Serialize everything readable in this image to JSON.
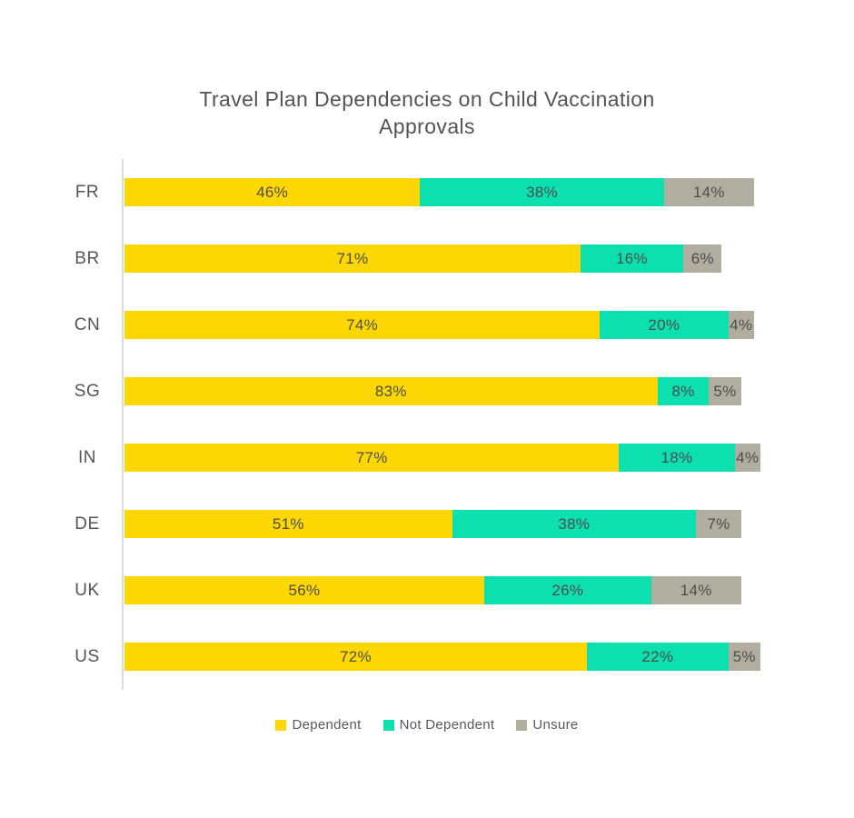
{
  "page": {
    "background": "#ffffff"
  },
  "chart_data": {
    "type": "bar",
    "orientation": "horizontal",
    "stacked": true,
    "title": "Travel Plan Dependencies on Child Vaccination Approvals",
    "categories": [
      "FR",
      "BR",
      "CN",
      "SG",
      "IN",
      "DE",
      "UK",
      "US"
    ],
    "series": [
      {
        "name": "Dependent",
        "color": "#fcd703",
        "values": [
          46,
          71,
          74,
          83,
          77,
          51,
          56,
          72
        ]
      },
      {
        "name": "Not Dependent",
        "color": "#0ce0ae",
        "values": [
          38,
          16,
          20,
          8,
          18,
          38,
          26,
          22
        ]
      },
      {
        "name": "Unsure",
        "color": "#b1ae9f",
        "values": [
          14,
          6,
          4,
          5,
          4,
          7,
          14,
          5
        ]
      }
    ],
    "value_suffix": "%",
    "xlim": [
      0,
      100
    ],
    "grid": false,
    "legend_position": "bottom",
    "bar_label_color": "#4d4d4d",
    "axis_line_color": "#dcdcdc"
  }
}
